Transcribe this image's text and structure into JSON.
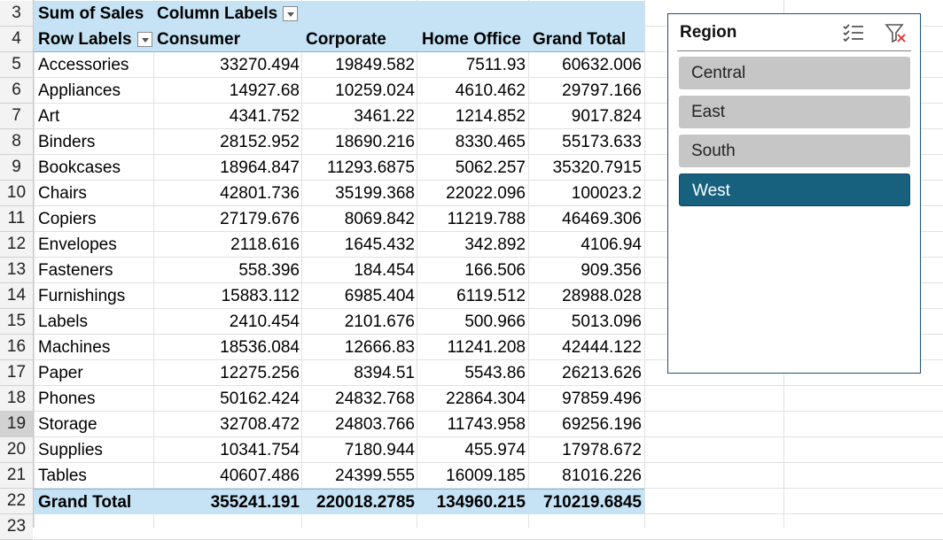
{
  "row_numbers": [
    "3",
    "4",
    "5",
    "6",
    "7",
    "8",
    "9",
    "10",
    "11",
    "12",
    "13",
    "14",
    "15",
    "16",
    "17",
    "18",
    "19",
    "20",
    "21",
    "22",
    "23"
  ],
  "pivot": {
    "values_label": "Sum of Sales",
    "column_labels": "Column Labels",
    "row_labels": "Row Labels",
    "columns": [
      "Consumer",
      "Corporate",
      "Home Office",
      "Grand Total"
    ],
    "rows": [
      {
        "label": "Accessories",
        "values": [
          "33270.494",
          "19849.582",
          "7511.93",
          "60632.006"
        ]
      },
      {
        "label": "Appliances",
        "values": [
          "14927.68",
          "10259.024",
          "4610.462",
          "29797.166"
        ]
      },
      {
        "label": "Art",
        "values": [
          "4341.752",
          "3461.22",
          "1214.852",
          "9017.824"
        ]
      },
      {
        "label": "Binders",
        "values": [
          "28152.952",
          "18690.216",
          "8330.465",
          "55173.633"
        ]
      },
      {
        "label": "Bookcases",
        "values": [
          "18964.847",
          "11293.6875",
          "5062.257",
          "35320.7915"
        ]
      },
      {
        "label": "Chairs",
        "values": [
          "42801.736",
          "35199.368",
          "22022.096",
          "100023.2"
        ]
      },
      {
        "label": "Copiers",
        "values": [
          "27179.676",
          "8069.842",
          "11219.788",
          "46469.306"
        ]
      },
      {
        "label": "Envelopes",
        "values": [
          "2118.616",
          "1645.432",
          "342.892",
          "4106.94"
        ]
      },
      {
        "label": "Fasteners",
        "values": [
          "558.396",
          "184.454",
          "166.506",
          "909.356"
        ]
      },
      {
        "label": "Furnishings",
        "values": [
          "15883.112",
          "6985.404",
          "6119.512",
          "28988.028"
        ]
      },
      {
        "label": "Labels",
        "values": [
          "2410.454",
          "2101.676",
          "500.966",
          "5013.096"
        ]
      },
      {
        "label": "Machines",
        "values": [
          "18536.084",
          "12666.83",
          "11241.208",
          "42444.122"
        ]
      },
      {
        "label": "Paper",
        "values": [
          "12275.256",
          "8394.51",
          "5543.86",
          "26213.626"
        ]
      },
      {
        "label": "Phones",
        "values": [
          "50162.424",
          "24832.768",
          "22864.304",
          "97859.496"
        ]
      },
      {
        "label": "Storage",
        "values": [
          "32708.472",
          "24803.766",
          "11743.958",
          "69256.196"
        ]
      },
      {
        "label": "Supplies",
        "values": [
          "10341.754",
          "7180.944",
          "455.974",
          "17978.672"
        ]
      },
      {
        "label": "Tables",
        "values": [
          "40607.486",
          "24399.555",
          "16009.185",
          "81016.226"
        ]
      }
    ],
    "grand_total": {
      "label": "Grand Total",
      "values": [
        "355241.191",
        "220018.2785",
        "134960.215",
        "710219.6845"
      ]
    }
  },
  "slicer": {
    "title": "Region",
    "items": [
      {
        "label": "Central",
        "selected": false
      },
      {
        "label": "East",
        "selected": false
      },
      {
        "label": "South",
        "selected": false
      },
      {
        "label": "West",
        "selected": true
      }
    ],
    "icons": [
      "multi-select-icon",
      "clear-filter-icon"
    ]
  },
  "colors": {
    "pivot_header": "#c5e3f5",
    "slicer_selected": "#17607e",
    "slicer_unselected": "#c6c6c6"
  }
}
